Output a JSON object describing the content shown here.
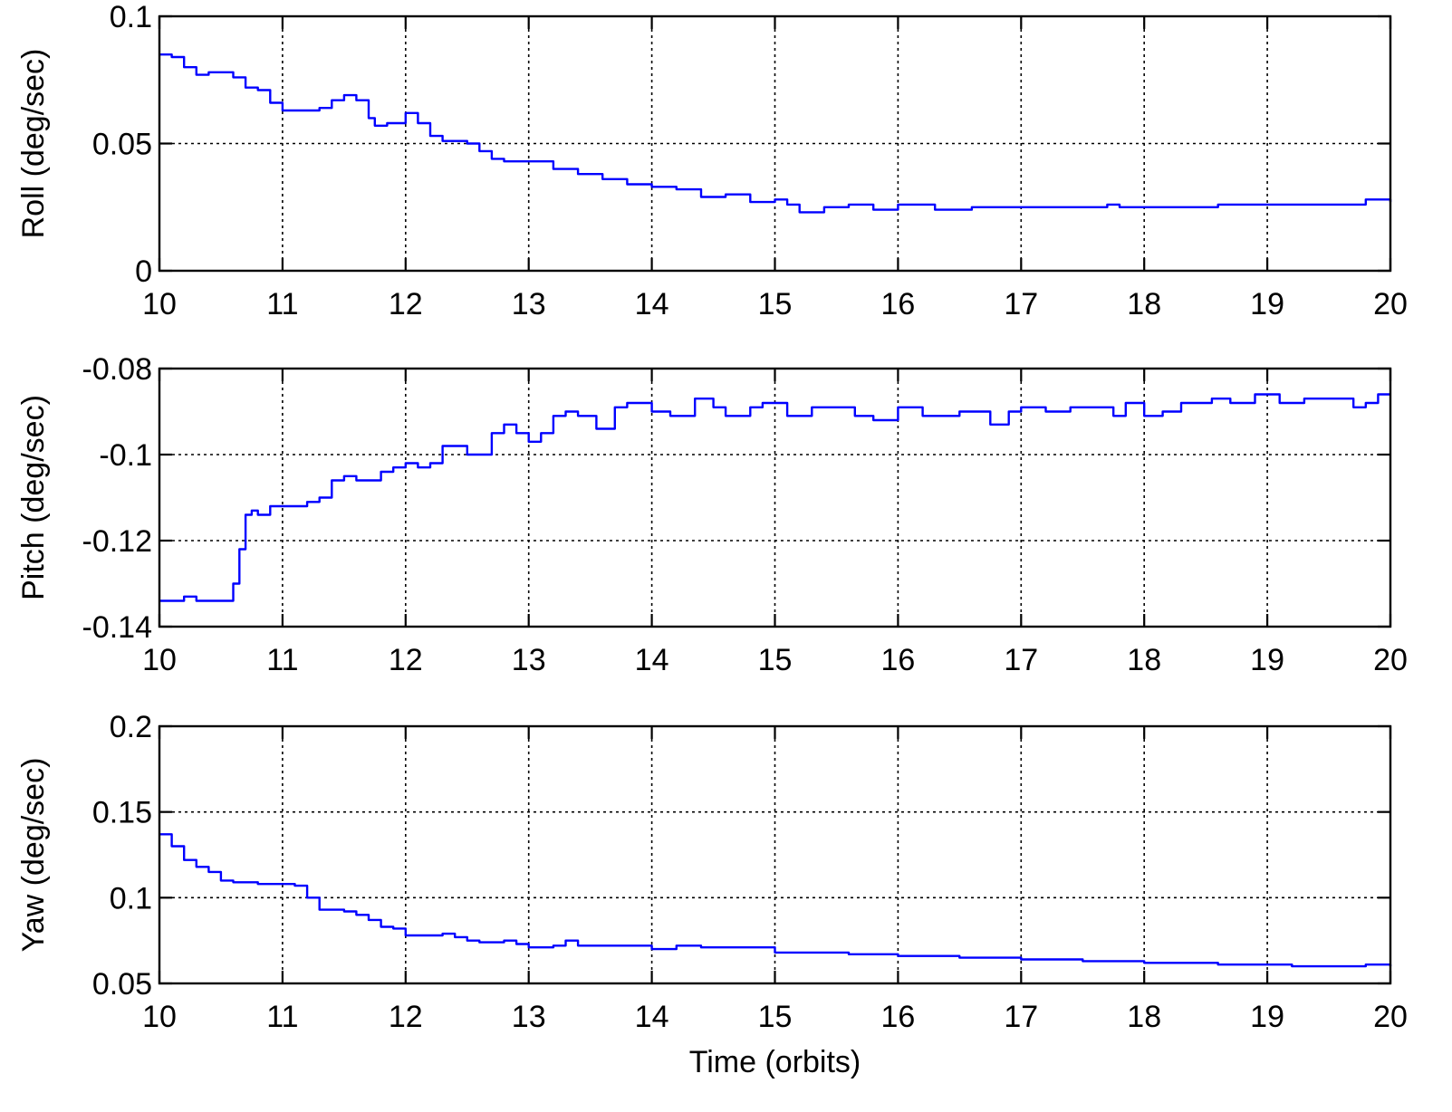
{
  "chart_data": [
    {
      "type": "line",
      "ylabel": "Roll (deg/sec)",
      "xlabel": "",
      "xlim": [
        10,
        20
      ],
      "ylim": [
        0,
        0.1
      ],
      "xticks": [
        10,
        11,
        12,
        13,
        14,
        15,
        16,
        17,
        18,
        19,
        20
      ],
      "xtick_labels": [
        "10",
        "11",
        "12",
        "13",
        "14",
        "15",
        "16",
        "17",
        "18",
        "19",
        "20"
      ],
      "yticks": [
        0,
        0.05,
        0.1
      ],
      "ytick_labels": [
        "0",
        "0.05",
        "0.1"
      ],
      "grid": true,
      "color": "#0000ff",
      "x": [
        10.0,
        10.1,
        10.2,
        10.3,
        10.4,
        10.55,
        10.6,
        10.7,
        10.8,
        10.9,
        11.0,
        11.1,
        11.2,
        11.3,
        11.4,
        11.5,
        11.6,
        11.7,
        11.75,
        11.85,
        12.0,
        12.1,
        12.2,
        12.3,
        12.4,
        12.5,
        12.6,
        12.7,
        12.8,
        13.0,
        13.2,
        13.4,
        13.6,
        13.8,
        14.0,
        14.2,
        14.4,
        14.6,
        14.8,
        15.0,
        15.1,
        15.2,
        15.4,
        15.6,
        15.8,
        16.0,
        16.3,
        16.6,
        17.0,
        17.4,
        17.7,
        17.8,
        18.2,
        18.6,
        19.0,
        19.4,
        19.8,
        20.0
      ],
      "y": [
        0.085,
        0.084,
        0.08,
        0.077,
        0.078,
        0.078,
        0.076,
        0.072,
        0.071,
        0.066,
        0.063,
        0.063,
        0.063,
        0.064,
        0.067,
        0.069,
        0.067,
        0.06,
        0.057,
        0.058,
        0.062,
        0.058,
        0.053,
        0.051,
        0.051,
        0.05,
        0.047,
        0.044,
        0.043,
        0.043,
        0.04,
        0.038,
        0.036,
        0.034,
        0.033,
        0.032,
        0.029,
        0.03,
        0.027,
        0.028,
        0.026,
        0.023,
        0.025,
        0.026,
        0.024,
        0.026,
        0.024,
        0.025,
        0.025,
        0.025,
        0.026,
        0.025,
        0.025,
        0.026,
        0.026,
        0.026,
        0.028,
        0.027
      ]
    },
    {
      "type": "line",
      "ylabel": "Pitch (deg/sec)",
      "xlabel": "",
      "xlim": [
        10,
        20
      ],
      "ylim": [
        -0.14,
        -0.08
      ],
      "xticks": [
        10,
        11,
        12,
        13,
        14,
        15,
        16,
        17,
        18,
        19,
        20
      ],
      "xtick_labels": [
        "10",
        "11",
        "12",
        "13",
        "14",
        "15",
        "16",
        "17",
        "18",
        "19",
        "20"
      ],
      "yticks": [
        -0.14,
        -0.12,
        -0.1,
        -0.08
      ],
      "ytick_labels": [
        "-0.14",
        "-0.12",
        "-0.1",
        "-0.08"
      ],
      "grid": true,
      "color": "#0000ff",
      "x": [
        10.0,
        10.1,
        10.2,
        10.3,
        10.5,
        10.55,
        10.6,
        10.65,
        10.7,
        10.75,
        10.8,
        10.9,
        11.0,
        11.2,
        11.3,
        11.4,
        11.5,
        11.6,
        11.7,
        11.8,
        11.9,
        12.0,
        12.1,
        12.2,
        12.3,
        12.4,
        12.5,
        12.6,
        12.7,
        12.8,
        12.9,
        13.0,
        13.1,
        13.2,
        13.3,
        13.4,
        13.55,
        13.7,
        13.8,
        14.0,
        14.15,
        14.35,
        14.5,
        14.6,
        14.8,
        14.9,
        15.1,
        15.3,
        15.45,
        15.65,
        15.8,
        16.0,
        16.2,
        16.5,
        16.75,
        16.9,
        17.0,
        17.2,
        17.4,
        17.6,
        17.75,
        17.85,
        18.0,
        18.15,
        18.3,
        18.55,
        18.7,
        18.9,
        19.1,
        19.3,
        19.5,
        19.7,
        19.8,
        19.9,
        20.0
      ],
      "y": [
        -0.134,
        -0.134,
        -0.133,
        -0.134,
        -0.134,
        -0.134,
        -0.13,
        -0.122,
        -0.114,
        -0.113,
        -0.114,
        -0.112,
        -0.112,
        -0.111,
        -0.11,
        -0.106,
        -0.105,
        -0.106,
        -0.106,
        -0.104,
        -0.103,
        -0.102,
        -0.103,
        -0.102,
        -0.098,
        -0.098,
        -0.1,
        -0.1,
        -0.095,
        -0.093,
        -0.095,
        -0.097,
        -0.095,
        -0.091,
        -0.09,
        -0.091,
        -0.094,
        -0.089,
        -0.088,
        -0.09,
        -0.091,
        -0.087,
        -0.089,
        -0.091,
        -0.089,
        -0.088,
        -0.091,
        -0.089,
        -0.089,
        -0.091,
        -0.092,
        -0.089,
        -0.091,
        -0.09,
        -0.093,
        -0.09,
        -0.089,
        -0.09,
        -0.089,
        -0.089,
        -0.091,
        -0.088,
        -0.091,
        -0.09,
        -0.088,
        -0.087,
        -0.088,
        -0.086,
        -0.088,
        -0.087,
        -0.087,
        -0.089,
        -0.088,
        -0.086,
        -0.086
      ]
    },
    {
      "type": "line",
      "ylabel": "Yaw (deg/sec)",
      "xlabel": "Time (orbits)",
      "xlim": [
        10,
        20
      ],
      "ylim": [
        0.05,
        0.2
      ],
      "xticks": [
        10,
        11,
        12,
        13,
        14,
        15,
        16,
        17,
        18,
        19,
        20
      ],
      "xtick_labels": [
        "10",
        "11",
        "12",
        "13",
        "14",
        "15",
        "16",
        "17",
        "18",
        "19",
        "20"
      ],
      "yticks": [
        0.05,
        0.1,
        0.15,
        0.2
      ],
      "ytick_labels": [
        "0.05",
        "0.1",
        "0.15",
        "0.2"
      ],
      "grid": true,
      "color": "#0000ff",
      "x": [
        10.0,
        10.1,
        10.2,
        10.3,
        10.4,
        10.5,
        10.6,
        10.8,
        11.0,
        11.1,
        11.2,
        11.3,
        11.5,
        11.6,
        11.7,
        11.8,
        11.9,
        12.0,
        12.2,
        12.3,
        12.4,
        12.5,
        12.6,
        12.8,
        12.9,
        13.0,
        13.2,
        13.3,
        13.4,
        13.6,
        13.8,
        14.0,
        14.2,
        14.4,
        14.6,
        14.8,
        15.0,
        15.3,
        15.6,
        15.9,
        16.0,
        16.2,
        16.5,
        16.8,
        17.0,
        17.2,
        17.5,
        17.8,
        18.0,
        18.3,
        18.6,
        18.9,
        19.2,
        19.5,
        19.8,
        20.0
      ],
      "y": [
        0.137,
        0.13,
        0.122,
        0.118,
        0.115,
        0.11,
        0.109,
        0.108,
        0.108,
        0.107,
        0.1,
        0.093,
        0.092,
        0.09,
        0.087,
        0.083,
        0.082,
        0.078,
        0.078,
        0.079,
        0.077,
        0.075,
        0.074,
        0.075,
        0.073,
        0.071,
        0.072,
        0.075,
        0.072,
        0.072,
        0.072,
        0.07,
        0.072,
        0.071,
        0.071,
        0.071,
        0.068,
        0.068,
        0.067,
        0.067,
        0.066,
        0.066,
        0.065,
        0.065,
        0.064,
        0.064,
        0.063,
        0.063,
        0.062,
        0.062,
        0.061,
        0.061,
        0.06,
        0.06,
        0.061,
        0.06
      ]
    }
  ]
}
